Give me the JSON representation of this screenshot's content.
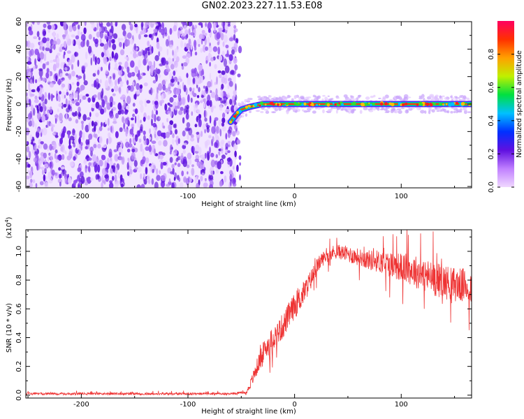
{
  "title": "GN02.2023.227.11.53.E08",
  "chart_data": [
    {
      "type": "heatmap",
      "xlabel": "Height of straight line (km)",
      "ylabel": "Frequency (Hz)",
      "xlim": [
        -252,
        166
      ],
      "ylim": [
        -61,
        60
      ],
      "xticks": [
        -200,
        -100,
        0,
        100
      ],
      "xtick_labels": [
        "-200",
        "-100",
        "0",
        "100"
      ],
      "yticks": [
        -60,
        -40,
        -20,
        0,
        20,
        40,
        60
      ],
      "ytick_labels": [
        "-60",
        "-40",
        "-20",
        "0",
        "20",
        "40",
        "60"
      ],
      "noise_region_x": [
        -252,
        -55
      ],
      "signal_track": [
        {
          "x": -60,
          "y": -13
        },
        {
          "x": -55,
          "y": -8
        },
        {
          "x": -50,
          "y": -4
        },
        {
          "x": -42,
          "y": -2
        },
        {
          "x": -30,
          "y": 0
        },
        {
          "x": 0,
          "y": 0
        },
        {
          "x": 60,
          "y": 0
        },
        {
          "x": 100,
          "y": 0
        },
        {
          "x": 166,
          "y": 0
        }
      ],
      "colorbar": {
        "label": "Normalized spectral amplitude",
        "range": [
          0,
          1
        ],
        "ticks": [
          0.0,
          0.2,
          0.4,
          0.6,
          0.8
        ],
        "tick_labels": [
          "0.0",
          "0.2",
          "0.4",
          "0.6",
          "0.8"
        ],
        "colors": [
          "#f0d8ff",
          "#c080ff",
          "#6010e0",
          "#0030ff",
          "#00c0ff",
          "#00e040",
          "#c0f000",
          "#ffa000",
          "#ff3000",
          "#ff0060"
        ]
      }
    },
    {
      "type": "line",
      "xlabel": "Height of straight line (km)",
      "ylabel": "SNR (10 * v/v)",
      "y_multiplier": "(x10",
      "y_multiplier_exp": "4",
      "y_multiplier_close": ")",
      "xlim": [
        -252,
        166
      ],
      "ylim": [
        -0.02,
        1.15
      ],
      "xticks": [
        -200,
        -100,
        0,
        100
      ],
      "xtick_labels": [
        "-200",
        "-100",
        "0",
        "100"
      ],
      "yticks": [
        0.0,
        0.2,
        0.4,
        0.6,
        0.8,
        1.0
      ],
      "ytick_labels": [
        "0.0",
        "0.2",
        "0.4",
        "0.6",
        "0.8",
        "1.0"
      ],
      "series": [
        {
          "color": "#ee3333",
          "x": [
            -252,
            -200,
            -150,
            -100,
            -60,
            -45,
            -40,
            -35,
            -30,
            -25,
            -20,
            -15,
            -10,
            -5,
            0,
            5,
            10,
            15,
            20,
            25,
            30,
            35,
            40,
            45,
            50,
            60,
            70,
            80,
            90,
            100,
            110,
            120,
            130,
            140,
            150,
            160,
            166
          ],
          "y": [
            0.01,
            0.01,
            0.01,
            0.01,
            0.01,
            0.02,
            0.1,
            0.2,
            0.29,
            0.35,
            0.4,
            0.44,
            0.49,
            0.56,
            0.62,
            0.67,
            0.73,
            0.8,
            0.88,
            0.94,
            0.97,
            0.99,
            1.0,
            0.99,
            0.98,
            0.96,
            0.94,
            0.93,
            0.91,
            0.89,
            0.87,
            0.84,
            0.81,
            0.79,
            0.77,
            0.76,
            0.75
          ],
          "noise": [
            0.008,
            0.008,
            0.008,
            0.008,
            0.008,
            0.01,
            0.04,
            0.06,
            0.07,
            0.08,
            0.08,
            0.09,
            0.09,
            0.09,
            0.09,
            0.09,
            0.08,
            0.07,
            0.06,
            0.05,
            0.05,
            0.05,
            0.05,
            0.05,
            0.06,
            0.06,
            0.07,
            0.08,
            0.09,
            0.1,
            0.11,
            0.12,
            0.12,
            0.12,
            0.12,
            0.12,
            0.12
          ]
        }
      ]
    }
  ]
}
